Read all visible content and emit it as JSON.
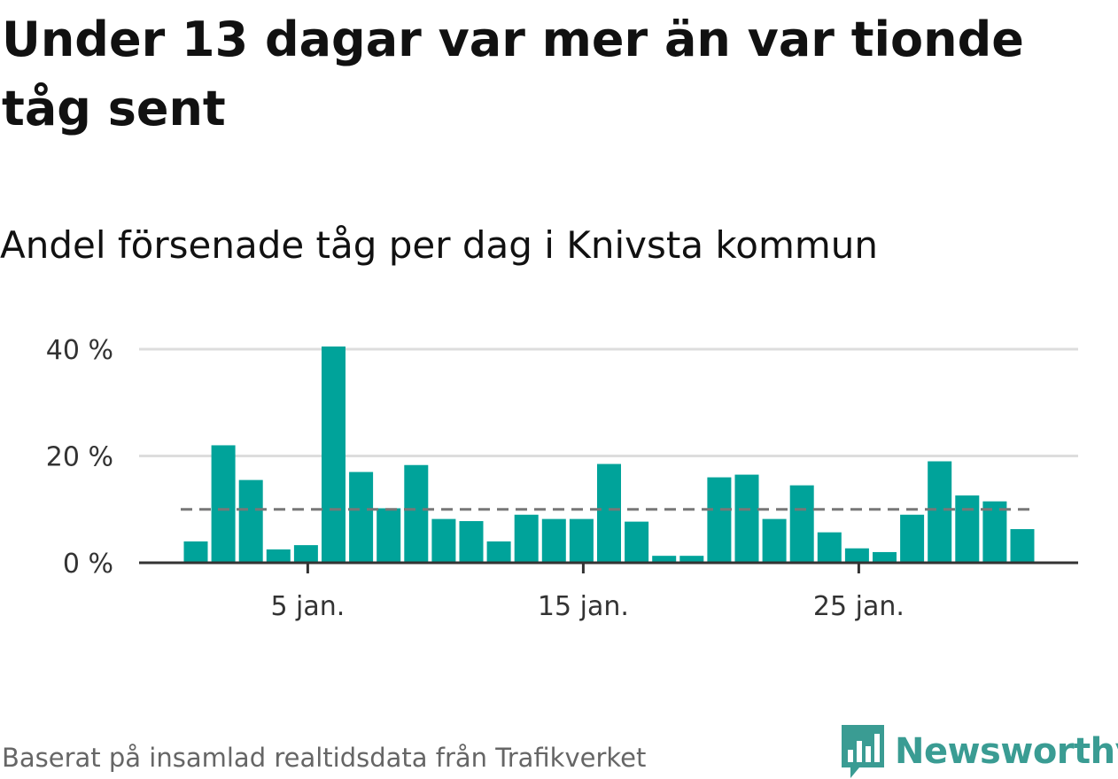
{
  "title": "Under 13 dagar var mer än var tionde tåg sent",
  "subtitle": "Andel försenade tåg per dag i Knivsta kommun",
  "footer": "Baserat på insamlad realtidsdata från Trafikverket",
  "brand": {
    "name": "Newsworthy",
    "icon": "newsworthy-logo-icon"
  },
  "colors": {
    "bar": "#00a39a",
    "reference": "#777777",
    "grid": "#dddddd",
    "axis": "#333333"
  },
  "chart_data": {
    "type": "bar",
    "x": [
      1,
      2,
      3,
      4,
      5,
      6,
      7,
      8,
      9,
      10,
      11,
      12,
      13,
      14,
      15,
      16,
      17,
      18,
      19,
      20,
      21,
      22,
      23,
      24,
      25,
      26,
      27,
      28,
      29,
      30,
      31
    ],
    "values": [
      4,
      22,
      15.5,
      2.5,
      3.3,
      40.5,
      17,
      10.2,
      18.3,
      8.2,
      7.8,
      4,
      9,
      8.2,
      8.2,
      18.5,
      7.7,
      1.3,
      1.3,
      16,
      16.5,
      8.2,
      14.5,
      5.7,
      2.7,
      2,
      9,
      19,
      12.6,
      11.5,
      6.3
    ],
    "reference_line": 10,
    "ylim": [
      0,
      40
    ],
    "yticks": [
      {
        "value": 0,
        "label": "0 %"
      },
      {
        "value": 20,
        "label": "20 %"
      },
      {
        "value": 40,
        "label": "40 %"
      }
    ],
    "xticks": [
      {
        "value": 5,
        "label": "5 jan."
      },
      {
        "value": 15,
        "label": "15 jan."
      },
      {
        "value": 25,
        "label": "25 jan."
      }
    ],
    "grid": true
  }
}
